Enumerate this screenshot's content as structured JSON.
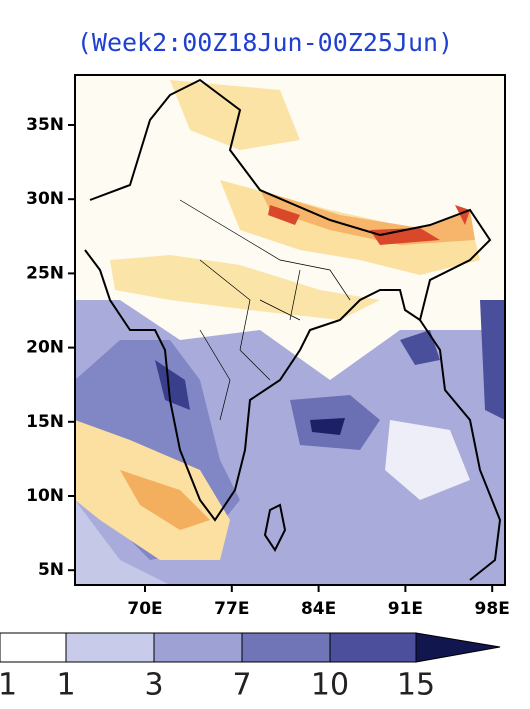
{
  "header": {
    "title": "(Week2:00Z18Jun-00Z25Jun)"
  },
  "map": {
    "lat_labels": [
      "35N",
      "30N",
      "25N",
      "20N",
      "15N",
      "10N",
      "5N"
    ],
    "lon_labels": [
      "70E",
      "77E",
      "84E",
      "91E",
      "98E"
    ]
  },
  "colorbar": {
    "labels": [
      "1",
      "1",
      "3",
      "7",
      "10",
      "15"
    ]
  }
}
